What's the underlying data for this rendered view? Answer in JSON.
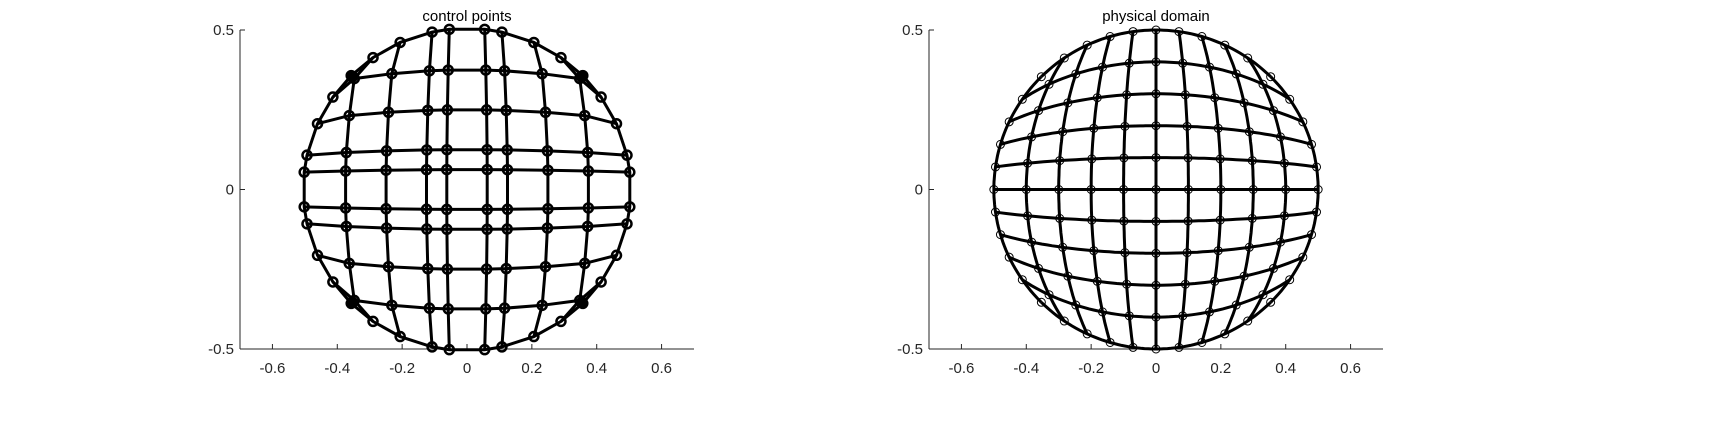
{
  "figure": {
    "background": "#ffffff",
    "axis_color": "#262626",
    "line_color": "#000000"
  },
  "chart_data": [
    {
      "type": "line",
      "title": "control points",
      "xlabel": "",
      "ylabel": "",
      "xlim": [
        -0.7,
        0.7
      ],
      "ylim": [
        -0.5,
        0.5
      ],
      "xticks": [
        -0.6,
        -0.4,
        -0.2,
        0,
        0.2,
        0.4,
        0.6
      ],
      "xtick_labels": [
        "-0.6",
        "-0.4",
        "-0.2",
        "0",
        "0.2",
        "0.4",
        "0.6"
      ],
      "yticks": [
        -0.5,
        0,
        0.5
      ],
      "ytick_labels": [
        "-0.5",
        "0",
        "0.5"
      ],
      "grid": false,
      "box": false,
      "marker": "circle",
      "grid_points_per_direction": 10,
      "nodes": [
        -0.5,
        -0.375,
        -0.25,
        -0.125,
        -0.0625,
        0.0625,
        0.125,
        0.25,
        0.375,
        0.5
      ],
      "highlighted_points": [
        [
          -0.354,
          0.354
        ],
        [
          0.354,
          0.354
        ],
        [
          -0.354,
          -0.354
        ],
        [
          0.354,
          -0.354
        ]
      ]
    },
    {
      "type": "line",
      "title": "physical domain",
      "xlabel": "",
      "ylabel": "",
      "xlim": [
        -0.7,
        0.7
      ],
      "ylim": [
        -0.5,
        0.5
      ],
      "xticks": [
        -0.6,
        -0.4,
        -0.2,
        0,
        0.2,
        0.4,
        0.6
      ],
      "xtick_labels": [
        "-0.6",
        "-0.4",
        "-0.2",
        "0",
        "0.2",
        "0.4",
        "0.6"
      ],
      "yticks": [
        -0.5,
        0,
        0.5
      ],
      "ytick_labels": [
        "-0.5",
        "0",
        "0.5"
      ],
      "grid": false,
      "box": false,
      "marker": "circle",
      "grid_lines_per_direction": 11,
      "points_per_line": 11
    }
  ]
}
